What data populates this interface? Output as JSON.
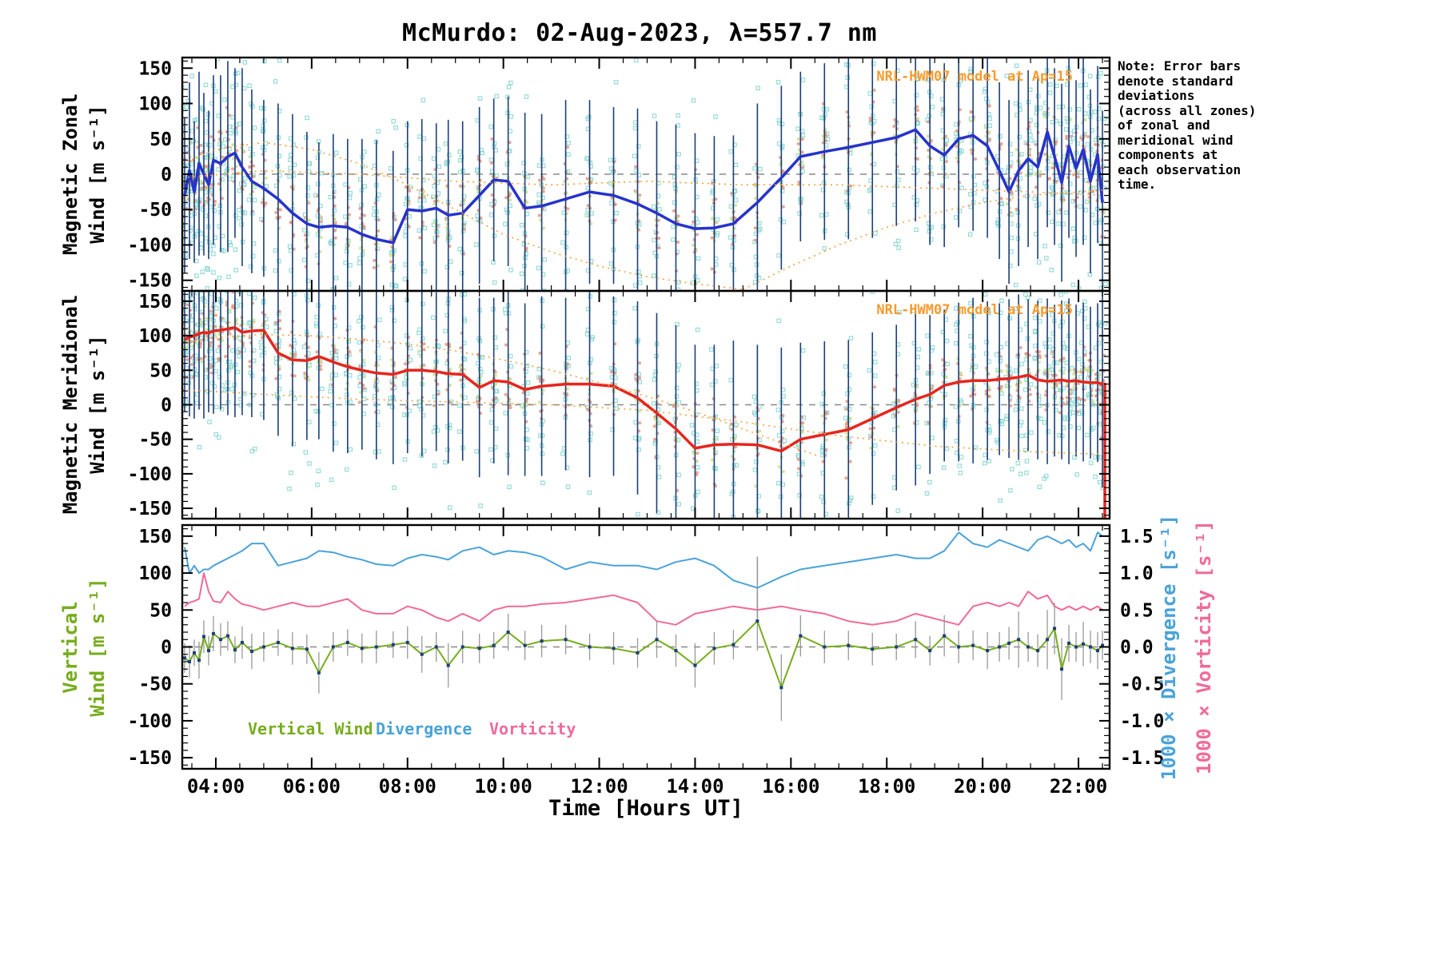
{
  "title": "McMurdo: 02-Aug-2023, λ=557.7 nm",
  "note": "Note: Error bars\ndenote standard\ndeviations\n(across all zones)\nof zonal and\nmeridional wind\ncomponents at\neach observation\ntime.",
  "colors": {
    "zonal": "#2633cc",
    "meridional": "#e6261d",
    "vertical": "#76ad1d",
    "divergence": "#4aa3d8",
    "vorticity": "#f06a9a",
    "model": "#f59b2e",
    "errbar_wind": "#1c3f77",
    "scatter_cyan": "#8fd9d4",
    "scatter_salmon": "#e8977e",
    "scatter_green": "#cde396",
    "err_gray": "#999999",
    "zero_line": "#888888"
  },
  "legend": {
    "items": [
      {
        "label": "Vertical Wind",
        "color": "#76ad1d"
      },
      {
        "label": "Divergence",
        "color": "#4aa3d8"
      },
      {
        "label": "Vorticity",
        "color": "#f06a9a"
      }
    ]
  },
  "chart_data": {
    "type": "line",
    "title": "McMurdo: 02-Aug-2023, λ=557.7 nm",
    "xlabel": "Time [Hours UT]",
    "xlim": [
      3.3,
      22.65
    ],
    "xticks": [
      {
        "v": 4,
        "label": "04:00"
      },
      {
        "v": 6,
        "label": "06:00"
      },
      {
        "v": 8,
        "label": "08:00"
      },
      {
        "v": 10,
        "label": "10:00"
      },
      {
        "v": 12,
        "label": "12:00"
      },
      {
        "v": 14,
        "label": "14:00"
      },
      {
        "v": 16,
        "label": "16:00"
      },
      {
        "v": 18,
        "label": "18:00"
      },
      {
        "v": 20,
        "label": "20:00"
      },
      {
        "v": 22,
        "label": "22:00"
      }
    ],
    "x_hours": [
      3.35,
      3.45,
      3.55,
      3.65,
      3.75,
      3.85,
      3.95,
      4.1,
      4.25,
      4.4,
      4.55,
      4.75,
      5.0,
      5.3,
      5.6,
      5.9,
      6.15,
      6.45,
      6.75,
      7.05,
      7.35,
      7.7,
      8.0,
      8.3,
      8.6,
      8.85,
      9.15,
      9.5,
      9.8,
      10.1,
      10.45,
      10.8,
      11.3,
      11.8,
      12.3,
      12.8,
      13.2,
      13.6,
      14.0,
      14.4,
      14.8,
      15.3,
      15.8,
      16.2,
      16.7,
      17.2,
      17.7,
      18.2,
      18.6,
      18.9,
      19.2,
      19.5,
      19.8,
      20.1,
      20.35,
      20.55,
      20.75,
      20.95,
      21.15,
      21.35,
      21.5,
      21.65,
      21.8,
      21.95,
      22.1,
      22.25,
      22.4,
      22.5
    ],
    "panels": [
      {
        "name": "magnetic-zonal-wind",
        "ylabel": "Magnetic Zonal Wind [m s⁻¹]",
        "ylabel_lines": [
          "Magnetic Zonal",
          "Wind [m s⁻¹]"
        ],
        "ylim": [
          -165,
          165
        ],
        "yticks": [
          -150,
          -100,
          -50,
          0,
          50,
          100,
          150
        ],
        "model_label": "NRL-HWM07 model at Ap=15",
        "series": [
          {
            "name": "Zonal wind (zone-average)",
            "color_key": "zonal",
            "width": 3.5,
            "scatter": true,
            "errbar_color_key": "errbar_wind",
            "y": [
              -30,
              5,
              -25,
              15,
              0,
              -15,
              20,
              15,
              25,
              30,
              10,
              -10,
              -20,
              -35,
              -55,
              -70,
              -75,
              -73,
              -75,
              -85,
              -92,
              -97,
              -50,
              -52,
              -48,
              -58,
              -55,
              -30,
              -8,
              -10,
              -48,
              -45,
              -35,
              -25,
              -30,
              -42,
              -55,
              -70,
              -77,
              -76,
              -70,
              -40,
              -5,
              25,
              32,
              38,
              45,
              52,
              63,
              40,
              27,
              50,
              55,
              40,
              5,
              -25,
              5,
              22,
              10,
              60,
              25,
              -12,
              40,
              8,
              35,
              -10,
              28,
              -40
            ],
            "std": [
              110,
              125,
              100,
              130,
              115,
              105,
              120,
              125,
              135,
              120,
              140,
              130,
              125,
              135,
              140,
              130,
              120,
              130,
              125,
              135,
              140,
              130,
              125,
              130,
              120,
              135,
              130,
              125,
              115,
              120,
              135,
              130,
              140,
              130,
              125,
              135,
              130,
              140,
              135,
              130,
              125,
              140,
              130,
              120,
              125,
              130,
              135,
              125,
              130,
              140,
              130,
              125,
              135,
              130,
              125,
              130,
              135,
              125,
              130,
              135,
              125,
              140,
              130,
              125,
              135,
              130,
              125,
              130
            ]
          }
        ],
        "model_curves": [
          {
            "x": [
              3.3,
              4,
              5,
              6,
              7,
              8,
              9,
              10,
              11,
              12,
              13,
              14,
              15
            ],
            "y": [
              15,
              35,
              45,
              35,
              15,
              -15,
              -50,
              -85,
              -110,
              -130,
              -145,
              -155,
              -163
            ]
          },
          {
            "x": [
              3.3,
              5,
              7,
              9,
              11,
              13,
              15,
              17,
              19,
              21,
              22.6
            ],
            "y": [
              -5,
              5,
              0,
              -10,
              -15,
              -10,
              -15,
              -15,
              -20,
              -25,
              -30
            ]
          },
          {
            "x": [
              15,
              16,
              17,
              18,
              19,
              20,
              21,
              22,
              22.6
            ],
            "y": [
              -163,
              -130,
              -100,
              -75,
              -55,
              -40,
              -30,
              -25,
              -22
            ]
          }
        ]
      },
      {
        "name": "magnetic-meridional-wind",
        "ylabel": "Magnetic Meridional Wind [m s⁻¹]",
        "ylabel_lines": [
          "Magnetic Meridional",
          "Wind [m s⁻¹]"
        ],
        "ylim": [
          -165,
          165
        ],
        "yticks": [
          -150,
          -100,
          -50,
          0,
          50,
          100,
          150
        ],
        "model_label": "NRL-HWM07 model at Ap=15",
        "series": [
          {
            "name": "Meridional wind (zone-average)",
            "color_key": "meridional",
            "width": 3.5,
            "scatter": true,
            "errbar_color_key": "errbar_wind",
            "y": [
              95,
              98,
              100,
              103,
              105,
              104,
              107,
              108,
              110,
              112,
              105,
              107,
              108,
              75,
              65,
              64,
              70,
              62,
              55,
              50,
              46,
              44,
              50,
              50,
              48,
              45,
              44,
              25,
              35,
              33,
              22,
              27,
              30,
              30,
              27,
              10,
              -12,
              -35,
              -63,
              -58,
              -57,
              -58,
              -67,
              -50,
              -43,
              -36,
              -20,
              -4,
              8,
              15,
              28,
              33,
              35,
              35,
              37,
              38,
              40,
              43,
              36,
              34,
              35,
              36,
              34,
              35,
              33,
              32,
              32,
              30
            ],
            "std": [
              105,
              115,
              120,
              110,
              125,
              115,
              120,
              115,
              125,
              130,
              120,
              125,
              130,
              120,
              125,
              115,
              120,
              130,
              125,
              115,
              125,
              130,
              120,
              125,
              115,
              130,
              125,
              130,
              120,
              135,
              125,
              130,
              125,
              135,
              130,
              140,
              145,
              150,
              150,
              145,
              150,
              145,
              150,
              140,
              135,
              130,
              125,
              120,
              125,
              115,
              110,
              115,
              120,
              115,
              110,
              115,
              120,
              110,
              115,
              120,
              110,
              115,
              120,
              110,
              115,
              110,
              115,
              150
            ]
          }
        ],
        "model_curves": [
          {
            "x": [
              3.3,
              4,
              5,
              6,
              7,
              8,
              9,
              10,
              11,
              12,
              13,
              14,
              15,
              16,
              16.6
            ],
            "y": [
              90,
              98,
              102,
              100,
              95,
              88,
              78,
              65,
              50,
              32,
              12,
              -10,
              -35,
              -60,
              -75
            ]
          },
          {
            "x": [
              3.3,
              5,
              7,
              9,
              11,
              13,
              15,
              17,
              19,
              21,
              22.6
            ],
            "y": [
              22,
              15,
              8,
              4,
              0,
              -8,
              -25,
              -45,
              -60,
              -68,
              -72
            ]
          }
        ],
        "annotations": [
          {
            "type": "vline",
            "x": 22.55,
            "y1": 32,
            "y2": -165,
            "color_key": "meridional",
            "width": 3.5
          }
        ]
      },
      {
        "name": "vertical-wind-divergence-vorticity",
        "ylabel": "Vertical Wind [m s⁻¹]",
        "ylabel_lines": [
          "Vertical",
          "Wind [m s⁻¹]"
        ],
        "ylim": [
          -165,
          165
        ],
        "yticks": [
          -150,
          -100,
          -50,
          0,
          50,
          100,
          150
        ],
        "right_axis": {
          "labels": [
            "1000 × Divergence [s⁻¹]",
            "1000 × Vorticity [s⁻¹]"
          ],
          "scale": 100,
          "ticks": [
            {
              "v": -1.5,
              "label": "-1.5"
            },
            {
              "v": -1.0,
              "label": "-1.0"
            },
            {
              "v": -0.5,
              "label": "-0.5"
            },
            {
              "v": 0,
              "label": "0.0"
            },
            {
              "v": 0.5,
              "label": "0.5"
            },
            {
              "v": 1.0,
              "label": "1.0"
            },
            {
              "v": 1.5,
              "label": "1.5"
            }
          ]
        },
        "series": [
          {
            "name": "Divergence",
            "color_key": "divergence",
            "axis": "right",
            "width": 2,
            "y": [
              1.35,
              1.0,
              1.1,
              1.0,
              1.05,
              1.05,
              1.1,
              1.15,
              1.2,
              1.25,
              1.3,
              1.4,
              1.4,
              1.1,
              1.15,
              1.2,
              1.3,
              1.28,
              1.22,
              1.18,
              1.12,
              1.1,
              1.2,
              1.25,
              1.22,
              1.18,
              1.3,
              1.35,
              1.25,
              1.3,
              1.28,
              1.22,
              1.05,
              1.15,
              1.1,
              1.1,
              1.05,
              1.15,
              1.2,
              1.1,
              0.9,
              0.8,
              0.95,
              1.05,
              1.1,
              1.15,
              1.2,
              1.25,
              1.2,
              1.2,
              1.3,
              1.55,
              1.4,
              1.35,
              1.45,
              1.4,
              1.35,
              1.3,
              1.45,
              1.5,
              1.45,
              1.4,
              1.45,
              1.35,
              1.4,
              1.3,
              1.55,
              1.5
            ],
            "errors": [
              {
                "x": 15.3,
                "y": 0.8,
                "e": 0.42
              }
            ]
          },
          {
            "name": "Vorticity",
            "color_key": "vorticity",
            "axis": "right",
            "width": 2,
            "y": [
              0.55,
              0.6,
              0.62,
              0.65,
              1.0,
              0.75,
              0.62,
              0.6,
              0.75,
              0.65,
              0.58,
              0.55,
              0.5,
              0.55,
              0.6,
              0.55,
              0.55,
              0.6,
              0.65,
              0.5,
              0.45,
              0.45,
              0.55,
              0.5,
              0.4,
              0.35,
              0.45,
              0.35,
              0.5,
              0.55,
              0.55,
              0.58,
              0.6,
              0.65,
              0.7,
              0.6,
              0.35,
              0.3,
              0.45,
              0.5,
              0.55,
              0.5,
              0.55,
              0.5,
              0.45,
              0.35,
              0.3,
              0.35,
              0.45,
              0.4,
              0.35,
              0.3,
              0.55,
              0.6,
              0.55,
              0.6,
              0.55,
              0.75,
              0.65,
              0.7,
              0.55,
              0.5,
              0.55,
              0.5,
              0.55,
              0.5,
              0.55,
              0.5
            ]
          },
          {
            "name": "Vertical Wind",
            "color_key": "vertical",
            "axis": "left",
            "width": 2,
            "markers": true,
            "errbar_color_key": "err_gray",
            "errbar_width": 1.3,
            "y": [
              -15,
              -20,
              -8,
              -18,
              14,
              -5,
              18,
              10,
              15,
              -4,
              6,
              -6,
              0,
              6,
              -2,
              -3,
              -35,
              0,
              6,
              -2,
              0,
              3,
              6,
              -10,
              0,
              -25,
              0,
              -2,
              2,
              20,
              2,
              8,
              10,
              0,
              -2,
              -8,
              10,
              -5,
              -25,
              -2,
              3,
              35,
              -55,
              15,
              0,
              2,
              -3,
              0,
              10,
              -5,
              15,
              0,
              2,
              -5,
              0,
              5,
              10,
              0,
              -5,
              10,
              25,
              -30,
              5,
              0,
              4,
              0,
              -5,
              2
            ],
            "std": [
              20,
              22,
              18,
              25,
              22,
              20,
              24,
              22,
              20,
              18,
              22,
              24,
              20,
              18,
              22,
              20,
              28,
              20,
              18,
              20,
              22,
              18,
              22,
              25,
              20,
              30,
              22,
              20,
              18,
              25,
              20,
              22,
              20,
              18,
              22,
              20,
              25,
              22,
              30,
              22,
              20,
              40,
              45,
              28,
              22,
              20,
              22,
              18,
              25,
              20,
              28,
              22,
              20,
              25,
              20,
              22,
              38,
              20,
              22,
              40,
              35,
              42,
              25,
              20,
              30,
              22,
              25,
              20
            ]
          }
        ]
      }
    ]
  }
}
